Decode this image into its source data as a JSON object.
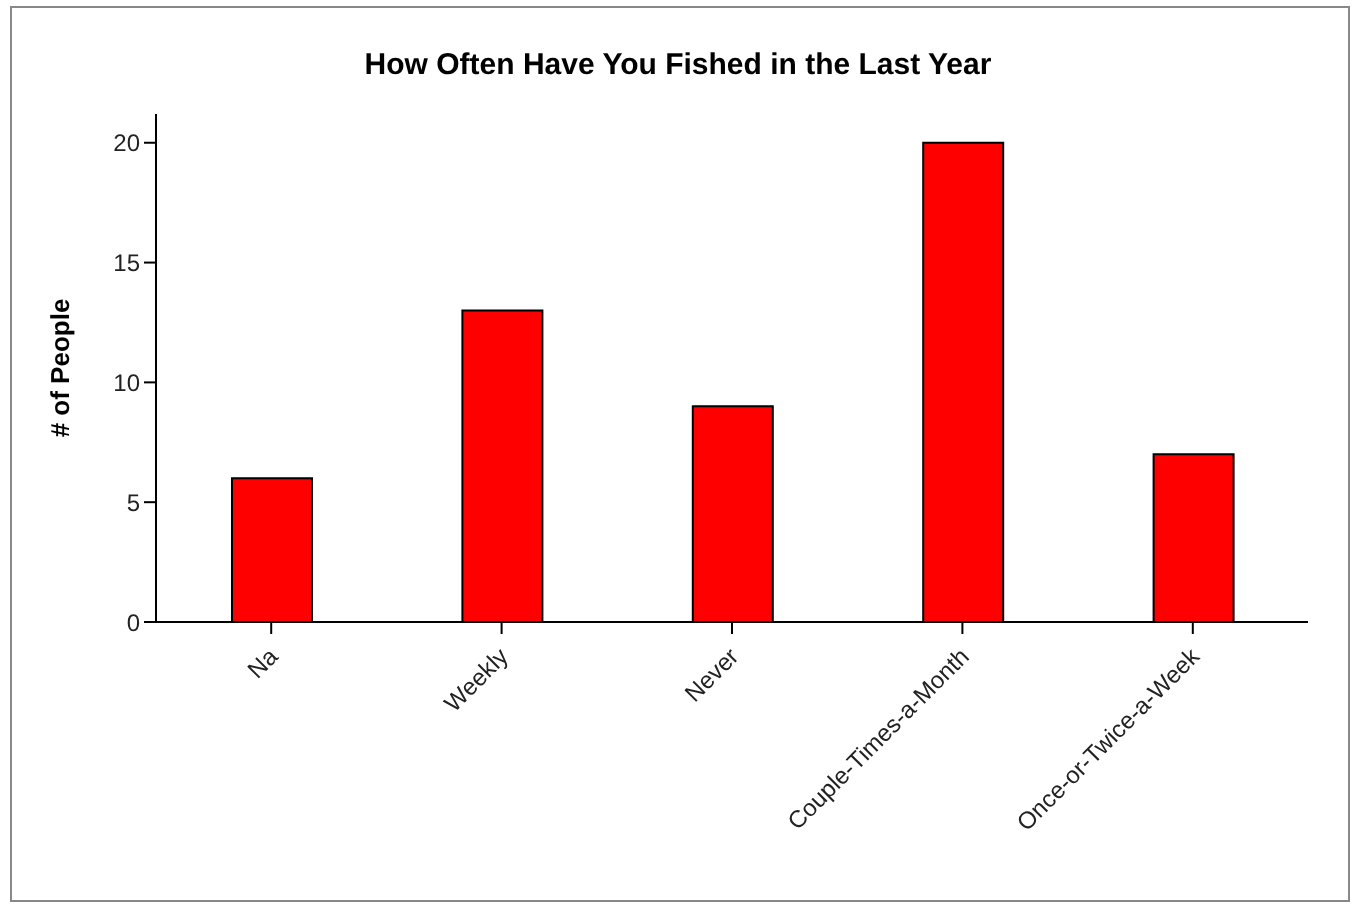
{
  "chart_data": {
    "type": "bar",
    "title": "How Often Have You Fished in the Last Year",
    "ylabel": "# of People",
    "categories": [
      "Na",
      "Weekly",
      "Never",
      "Couple-Times-a-Month",
      "Once-or-Twice-a-Week"
    ],
    "values": [
      6,
      13,
      9,
      20,
      7
    ],
    "color": "#ff0000",
    "ylim": [
      0,
      21.2
    ],
    "yticks": [
      0,
      5,
      10,
      15,
      20
    ],
    "grid": false,
    "legend": false
  }
}
